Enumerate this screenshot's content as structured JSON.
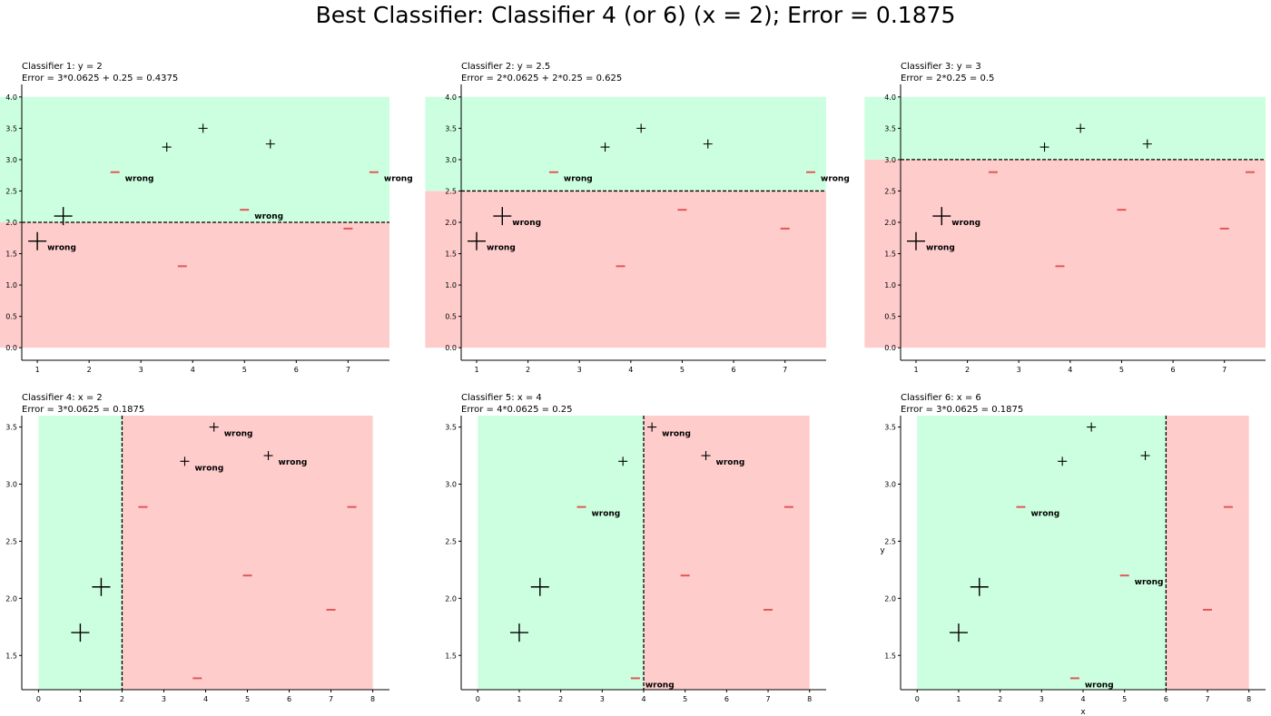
{
  "title": "Best Classifier: Classifier 4 (or 6) (x = 2); Error = 0.1875",
  "colors": {
    "positive_region": "#ccffe0",
    "negative_region": "#ffcccc",
    "negative_marker": "#e05858",
    "marker": "#000000"
  },
  "chart_data": [
    {
      "type": "scatter",
      "title": "Classifier 1: y = 2",
      "subtitle": "Error = 3*0.0625 + 0.25 = 0.4375",
      "xlabel": "",
      "ylabel": "",
      "xlim": [
        0.7,
        7.8
      ],
      "ylim": [
        -0.2,
        4.2
      ],
      "xticks": [
        "1",
        "2",
        "3",
        "4",
        "5",
        "6",
        "7"
      ],
      "yticks": [
        "0.0",
        "0.5",
        "1.0",
        "1.5",
        "2.0",
        "2.5",
        "3.0",
        "3.5",
        "4.0"
      ],
      "region_x": [
        0,
        7.8
      ],
      "region_y": [
        0,
        4
      ],
      "split": {
        "axis": "y",
        "value": 2
      },
      "annotation": "wrong",
      "points": [
        {
          "x": 1.0,
          "y": 1.7,
          "label": "+",
          "w": 0.25,
          "wrong": true
        },
        {
          "x": 1.5,
          "y": 2.1,
          "label": "+",
          "w": 0.25,
          "wrong": false
        },
        {
          "x": 3.5,
          "y": 3.2,
          "label": "+",
          "w": 0.0625,
          "wrong": false
        },
        {
          "x": 4.2,
          "y": 3.5,
          "label": "+",
          "w": 0.0625,
          "wrong": false
        },
        {
          "x": 5.5,
          "y": 3.25,
          "label": "+",
          "w": 0.0625,
          "wrong": false
        },
        {
          "x": 2.5,
          "y": 2.8,
          "label": "-",
          "w": 0.0625,
          "wrong": true
        },
        {
          "x": 3.8,
          "y": 1.3,
          "label": "-",
          "w": 0.0625,
          "wrong": false
        },
        {
          "x": 5.0,
          "y": 2.2,
          "label": "-",
          "w": 0.0625,
          "wrong": true
        },
        {
          "x": 7.0,
          "y": 1.9,
          "label": "-",
          "w": 0.0625,
          "wrong": false
        },
        {
          "x": 7.5,
          "y": 2.8,
          "label": "-",
          "w": 0.0625,
          "wrong": true
        }
      ]
    },
    {
      "type": "scatter",
      "title": "Classifier 2: y = 2.5",
      "subtitle": "Error = 2*0.0625 + 2*0.25 = 0.625",
      "xlabel": "",
      "ylabel": "",
      "xlim": [
        0.7,
        7.8
      ],
      "ylim": [
        -0.2,
        4.2
      ],
      "xticks": [
        "1",
        "2",
        "3",
        "4",
        "5",
        "6",
        "7"
      ],
      "yticks": [
        "0.0",
        "0.5",
        "1.0",
        "1.5",
        "2.0",
        "2.5",
        "3.0",
        "3.5",
        "4.0"
      ],
      "region_x": [
        0,
        7.8
      ],
      "region_y": [
        0,
        4
      ],
      "split": {
        "axis": "y",
        "value": 2.5
      },
      "annotation": "wrong",
      "points": [
        {
          "x": 1.0,
          "y": 1.7,
          "label": "+",
          "w": 0.25,
          "wrong": true
        },
        {
          "x": 1.5,
          "y": 2.1,
          "label": "+",
          "w": 0.25,
          "wrong": true
        },
        {
          "x": 3.5,
          "y": 3.2,
          "label": "+",
          "w": 0.0625,
          "wrong": false
        },
        {
          "x": 4.2,
          "y": 3.5,
          "label": "+",
          "w": 0.0625,
          "wrong": false
        },
        {
          "x": 5.5,
          "y": 3.25,
          "label": "+",
          "w": 0.0625,
          "wrong": false
        },
        {
          "x": 2.5,
          "y": 2.8,
          "label": "-",
          "w": 0.0625,
          "wrong": true
        },
        {
          "x": 3.8,
          "y": 1.3,
          "label": "-",
          "w": 0.0625,
          "wrong": false
        },
        {
          "x": 5.0,
          "y": 2.2,
          "label": "-",
          "w": 0.0625,
          "wrong": false
        },
        {
          "x": 7.0,
          "y": 1.9,
          "label": "-",
          "w": 0.0625,
          "wrong": false
        },
        {
          "x": 7.5,
          "y": 2.8,
          "label": "-",
          "w": 0.0625,
          "wrong": true
        }
      ]
    },
    {
      "type": "scatter",
      "title": "Classifier 3: y = 3",
      "subtitle": "Error = 2*0.25 = 0.5",
      "xlabel": "",
      "ylabel": "",
      "xlim": [
        0.7,
        7.8
      ],
      "ylim": [
        -0.2,
        4.2
      ],
      "xticks": [
        "1",
        "2",
        "3",
        "4",
        "5",
        "6",
        "7"
      ],
      "yticks": [
        "0.0",
        "0.5",
        "1.0",
        "1.5",
        "2.0",
        "2.5",
        "3.0",
        "3.5",
        "4.0"
      ],
      "region_x": [
        0,
        7.8
      ],
      "region_y": [
        0,
        4
      ],
      "split": {
        "axis": "y",
        "value": 3
      },
      "annotation": "wrong",
      "points": [
        {
          "x": 1.0,
          "y": 1.7,
          "label": "+",
          "w": 0.25,
          "wrong": true
        },
        {
          "x": 1.5,
          "y": 2.1,
          "label": "+",
          "w": 0.25,
          "wrong": true
        },
        {
          "x": 3.5,
          "y": 3.2,
          "label": "+",
          "w": 0.0625,
          "wrong": false
        },
        {
          "x": 4.2,
          "y": 3.5,
          "label": "+",
          "w": 0.0625,
          "wrong": false
        },
        {
          "x": 5.5,
          "y": 3.25,
          "label": "+",
          "w": 0.0625,
          "wrong": false
        },
        {
          "x": 2.5,
          "y": 2.8,
          "label": "-",
          "w": 0.0625,
          "wrong": false
        },
        {
          "x": 3.8,
          "y": 1.3,
          "label": "-",
          "w": 0.0625,
          "wrong": false
        },
        {
          "x": 5.0,
          "y": 2.2,
          "label": "-",
          "w": 0.0625,
          "wrong": false
        },
        {
          "x": 7.0,
          "y": 1.9,
          "label": "-",
          "w": 0.0625,
          "wrong": false
        },
        {
          "x": 7.5,
          "y": 2.8,
          "label": "-",
          "w": 0.0625,
          "wrong": false
        }
      ]
    },
    {
      "type": "scatter",
      "title": "Classifier 4: x = 2",
      "subtitle": "Error = 3*0.0625 = 0.1875",
      "xlabel": "",
      "ylabel": "",
      "xlim": [
        -0.4,
        8.4
      ],
      "ylim": [
        1.2,
        3.6
      ],
      "xticks": [
        "0",
        "1",
        "2",
        "3",
        "4",
        "5",
        "6",
        "7",
        "8"
      ],
      "yticks": [
        "1.5",
        "2.0",
        "2.5",
        "3.0",
        "3.5"
      ],
      "region_x": [
        0,
        8
      ],
      "region_y": [
        1.2,
        3.6
      ],
      "split": {
        "axis": "x",
        "value": 2
      },
      "annotation": "wrong",
      "points": [
        {
          "x": 1.0,
          "y": 1.7,
          "label": "+",
          "w": 0.25,
          "wrong": false
        },
        {
          "x": 1.5,
          "y": 2.1,
          "label": "+",
          "w": 0.25,
          "wrong": false
        },
        {
          "x": 3.5,
          "y": 3.2,
          "label": "+",
          "w": 0.0625,
          "wrong": true
        },
        {
          "x": 4.2,
          "y": 3.5,
          "label": "+",
          "w": 0.0625,
          "wrong": true
        },
        {
          "x": 5.5,
          "y": 3.25,
          "label": "+",
          "w": 0.0625,
          "wrong": true
        },
        {
          "x": 2.5,
          "y": 2.8,
          "label": "-",
          "w": 0.0625,
          "wrong": false
        },
        {
          "x": 3.8,
          "y": 1.3,
          "label": "-",
          "w": 0.0625,
          "wrong": false
        },
        {
          "x": 5.0,
          "y": 2.2,
          "label": "-",
          "w": 0.0625,
          "wrong": false
        },
        {
          "x": 7.0,
          "y": 1.9,
          "label": "-",
          "w": 0.0625,
          "wrong": false
        },
        {
          "x": 7.5,
          "y": 2.8,
          "label": "-",
          "w": 0.0625,
          "wrong": false
        }
      ]
    },
    {
      "type": "scatter",
      "title": "Classifier 5: x = 4",
      "subtitle": "Error = 4*0.0625 = 0.25",
      "xlabel": "",
      "ylabel": "",
      "xlim": [
        -0.4,
        8.4
      ],
      "ylim": [
        1.2,
        3.6
      ],
      "xticks": [
        "0",
        "1",
        "2",
        "3",
        "4",
        "5",
        "6",
        "7",
        "8"
      ],
      "yticks": [
        "1.5",
        "2.0",
        "2.5",
        "3.0",
        "3.5"
      ],
      "region_x": [
        0,
        8
      ],
      "region_y": [
        1.2,
        3.6
      ],
      "split": {
        "axis": "x",
        "value": 4
      },
      "annotation": "wrong",
      "points": [
        {
          "x": 1.0,
          "y": 1.7,
          "label": "+",
          "w": 0.25,
          "wrong": false
        },
        {
          "x": 1.5,
          "y": 2.1,
          "label": "+",
          "w": 0.25,
          "wrong": false
        },
        {
          "x": 3.5,
          "y": 3.2,
          "label": "+",
          "w": 0.0625,
          "wrong": false
        },
        {
          "x": 4.2,
          "y": 3.5,
          "label": "+",
          "w": 0.0625,
          "wrong": true
        },
        {
          "x": 5.5,
          "y": 3.25,
          "label": "+",
          "w": 0.0625,
          "wrong": true
        },
        {
          "x": 2.5,
          "y": 2.8,
          "label": "-",
          "w": 0.0625,
          "wrong": true
        },
        {
          "x": 3.8,
          "y": 1.3,
          "label": "-",
          "w": 0.0625,
          "wrong": true
        },
        {
          "x": 5.0,
          "y": 2.2,
          "label": "-",
          "w": 0.0625,
          "wrong": false
        },
        {
          "x": 7.0,
          "y": 1.9,
          "label": "-",
          "w": 0.0625,
          "wrong": false
        },
        {
          "x": 7.5,
          "y": 2.8,
          "label": "-",
          "w": 0.0625,
          "wrong": false
        }
      ]
    },
    {
      "type": "scatter",
      "title": "Classifier 6: x = 6",
      "subtitle": "Error = 3*0.0625 = 0.1875",
      "xlabel": "x",
      "ylabel": "y",
      "xlim": [
        -0.4,
        8.4
      ],
      "ylim": [
        1.2,
        3.6
      ],
      "xticks": [
        "0",
        "1",
        "2",
        "3",
        "4",
        "5",
        "6",
        "7",
        "8"
      ],
      "yticks": [
        "1.5",
        "2.0",
        "2.5",
        "3.0",
        "3.5"
      ],
      "region_x": [
        0,
        8
      ],
      "region_y": [
        1.2,
        3.6
      ],
      "split": {
        "axis": "x",
        "value": 6
      },
      "annotation": "wrong",
      "points": [
        {
          "x": 1.0,
          "y": 1.7,
          "label": "+",
          "w": 0.25,
          "wrong": false
        },
        {
          "x": 1.5,
          "y": 2.1,
          "label": "+",
          "w": 0.25,
          "wrong": false
        },
        {
          "x": 3.5,
          "y": 3.2,
          "label": "+",
          "w": 0.0625,
          "wrong": false
        },
        {
          "x": 4.2,
          "y": 3.5,
          "label": "+",
          "w": 0.0625,
          "wrong": false
        },
        {
          "x": 5.5,
          "y": 3.25,
          "label": "+",
          "w": 0.0625,
          "wrong": false
        },
        {
          "x": 2.5,
          "y": 2.8,
          "label": "-",
          "w": 0.0625,
          "wrong": true
        },
        {
          "x": 3.8,
          "y": 1.3,
          "label": "-",
          "w": 0.0625,
          "wrong": true
        },
        {
          "x": 5.0,
          "y": 2.2,
          "label": "-",
          "w": 0.0625,
          "wrong": true
        },
        {
          "x": 7.0,
          "y": 1.9,
          "label": "-",
          "w": 0.0625,
          "wrong": false
        },
        {
          "x": 7.5,
          "y": 2.8,
          "label": "-",
          "w": 0.0625,
          "wrong": false
        }
      ]
    }
  ]
}
